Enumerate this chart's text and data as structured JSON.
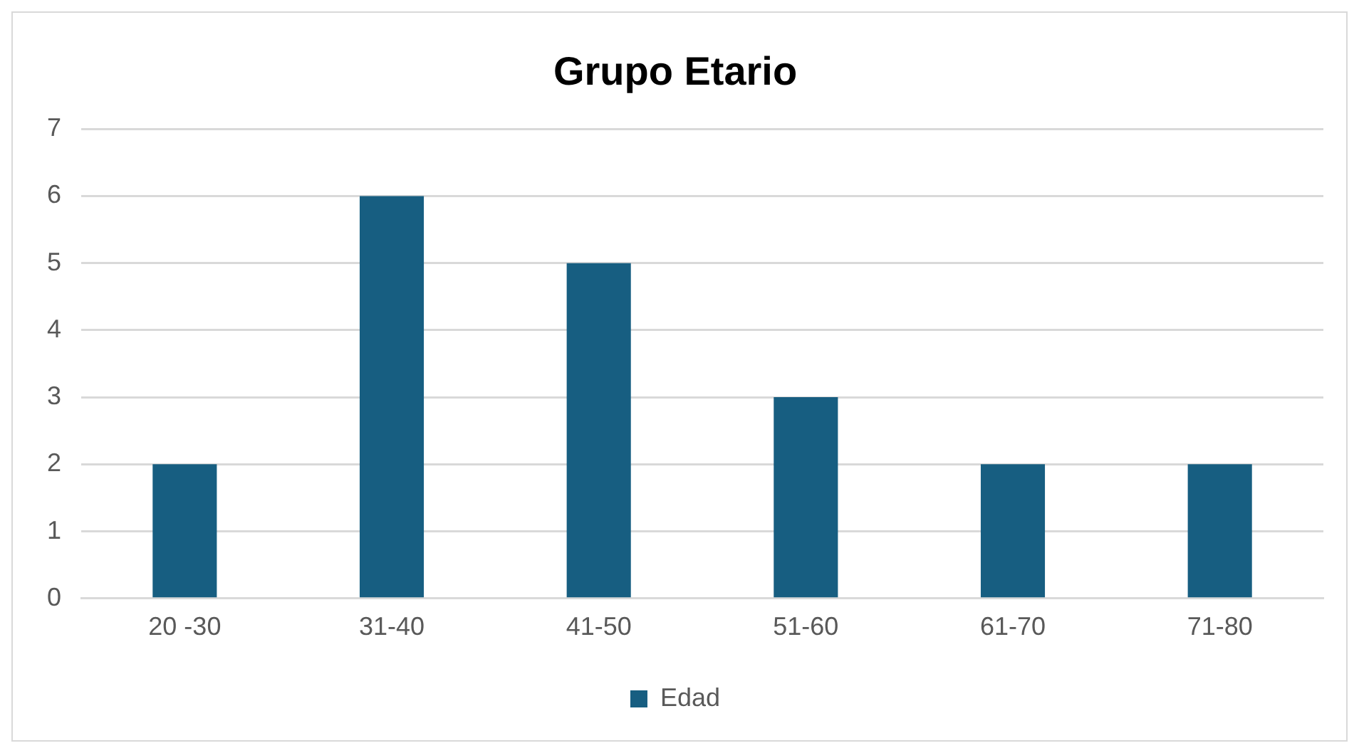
{
  "chart_data": {
    "type": "bar",
    "title": "Grupo Etario",
    "categories": [
      "20 -30",
      "31-40",
      "41-50",
      "51-60",
      "61-70",
      "71-80"
    ],
    "series": [
      {
        "name": "Edad",
        "color": "#175e81",
        "values": [
          2,
          6,
          5,
          3,
          2,
          2
        ]
      }
    ],
    "ylim": [
      0,
      7
    ],
    "yticks": [
      0,
      1,
      2,
      3,
      4,
      5,
      6,
      7
    ],
    "grid": "y",
    "legend": "bottom"
  }
}
